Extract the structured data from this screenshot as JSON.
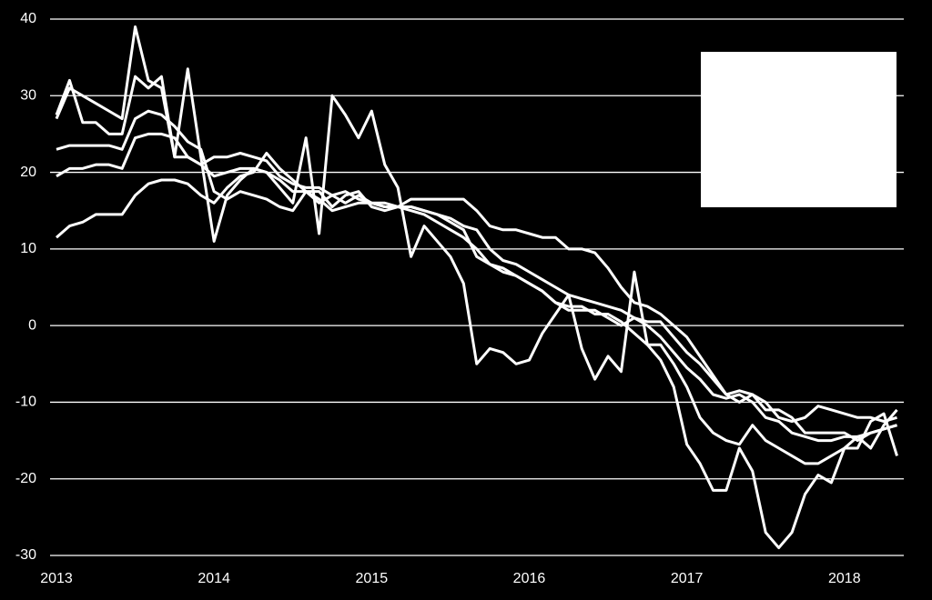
{
  "chart_data": {
    "type": "line",
    "categories": [
      "2013",
      null,
      null,
      null,
      null,
      null,
      null,
      null,
      null,
      null,
      null,
      null,
      "2014",
      null,
      null,
      null,
      null,
      null,
      null,
      null,
      null,
      null,
      null,
      null,
      "2015",
      null,
      null,
      null,
      null,
      null,
      null,
      null,
      null,
      null,
      null,
      null,
      "2016",
      null,
      null,
      null,
      null,
      null,
      null,
      null,
      null,
      null,
      null,
      null,
      "2017",
      null,
      null,
      null,
      null,
      null,
      null,
      null,
      null,
      null,
      null,
      null,
      "2018",
      null,
      null,
      null,
      null
    ],
    "ylim": [
      -30,
      40
    ],
    "yticks": [
      -30,
      -20,
      -10,
      0,
      10,
      20,
      30,
      40
    ],
    "grid": true,
    "series": [
      {
        "color": "#ffffff",
        "values": [
          27,
          31,
          30,
          29,
          28,
          27,
          39,
          32,
          31,
          22,
          33.5,
          22,
          11,
          17,
          19,
          20.5,
          20,
          18,
          16,
          24.5,
          12,
          30,
          27.5,
          24.5,
          28,
          21,
          18,
          9,
          13,
          11,
          9,
          5.5,
          -5,
          -3,
          -3.5,
          -5,
          -4.5,
          -1,
          1.5,
          4,
          -3,
          -7,
          -4,
          -6,
          7,
          -2.5,
          -4.5,
          -8,
          -15.5,
          -18,
          -21.5,
          -21.5,
          -16,
          -19,
          -27,
          -29,
          -27,
          -22,
          -19.5,
          -20.5,
          -16,
          -16,
          -12.5,
          -11.5,
          -17
        ]
      },
      {
        "color": "#ffffff",
        "values": [
          27.5,
          32,
          26.5,
          26.5,
          25,
          25,
          32.5,
          31,
          32.5,
          22,
          22,
          21,
          22,
          22,
          22.5,
          22,
          21.5,
          19.5,
          18.5,
          18,
          18,
          17,
          16,
          17,
          16,
          15.5,
          15.5,
          15,
          14.5,
          13.5,
          12.5,
          11.5,
          10,
          8,
          7,
          6.5,
          5.5,
          4.5,
          3,
          2.5,
          2.5,
          1.5,
          1.5,
          0.5,
          -1,
          -2.5,
          -2.5,
          -5,
          -8,
          -12,
          -14,
          -15,
          -15.5,
          -13,
          -15,
          -16,
          -17,
          -18,
          -18,
          -17,
          -16,
          -14.5,
          -14,
          -13.5,
          -13
        ]
      },
      {
        "color": "#ffffff",
        "values": [
          19.5,
          20.5,
          20.5,
          21,
          21,
          20.5,
          24.5,
          25,
          25,
          24.5,
          22,
          21,
          19.5,
          20,
          20.5,
          20.5,
          20,
          19,
          17.5,
          17.5,
          17.5,
          15.5,
          17,
          17.5,
          15.5,
          15,
          15.5,
          15.5,
          15,
          14.5,
          14,
          13,
          12.5,
          10,
          8.5,
          8,
          7,
          6,
          5,
          4,
          3.5,
          3,
          2.5,
          2,
          1,
          0,
          -1.5,
          -3.5,
          -5.5,
          -7,
          -9,
          -9.5,
          -9,
          -10,
          -12,
          -12.5,
          -14,
          -14.5,
          -15,
          -15,
          -14.5,
          -14.5,
          -16,
          -13,
          -11
        ]
      },
      {
        "color": "#ffffff",
        "values": [
          23,
          23.5,
          23.5,
          23.5,
          23.5,
          23,
          27,
          28,
          27.5,
          26,
          24,
          23,
          17.5,
          16.5,
          17.5,
          17,
          16.5,
          15.5,
          15,
          17.5,
          16,
          17,
          17.5,
          16.5,
          16,
          15.5,
          15.5,
          15.5,
          15,
          14.5,
          13.5,
          12.5,
          9,
          8,
          7.5,
          6.5,
          5.5,
          4.5,
          3,
          2,
          2,
          2,
          1,
          0,
          1,
          0.5,
          0.5,
          -1.5,
          -3.5,
          -5,
          -7,
          -9,
          -8.5,
          -9,
          -11,
          -11,
          -12,
          -14,
          -14,
          -14,
          -14,
          -15,
          -14,
          -13.5,
          -13
        ]
      },
      {
        "color": "#ffffff",
        "values": [
          11.5,
          13,
          13.5,
          14.5,
          14.5,
          14.5,
          17,
          18.5,
          19,
          19,
          18.5,
          17,
          16,
          18,
          19.5,
          20,
          22.5,
          20.5,
          19,
          17.5,
          16.5,
          15,
          15.5,
          16,
          16,
          16,
          15.5,
          16.5,
          16.5,
          16.5,
          16.5,
          16.5,
          15,
          13,
          12.5,
          12.5,
          12,
          11.5,
          11.5,
          10,
          10,
          9.5,
          7.5,
          5,
          3,
          2.5,
          1.5,
          0,
          -1.5,
          -4,
          -6.5,
          -9,
          -10,
          -9,
          -10,
          -12,
          -12.5,
          -12,
          -10.5,
          -11,
          -11.5,
          -12,
          -12,
          -12.5,
          -12
        ]
      }
    ]
  }
}
